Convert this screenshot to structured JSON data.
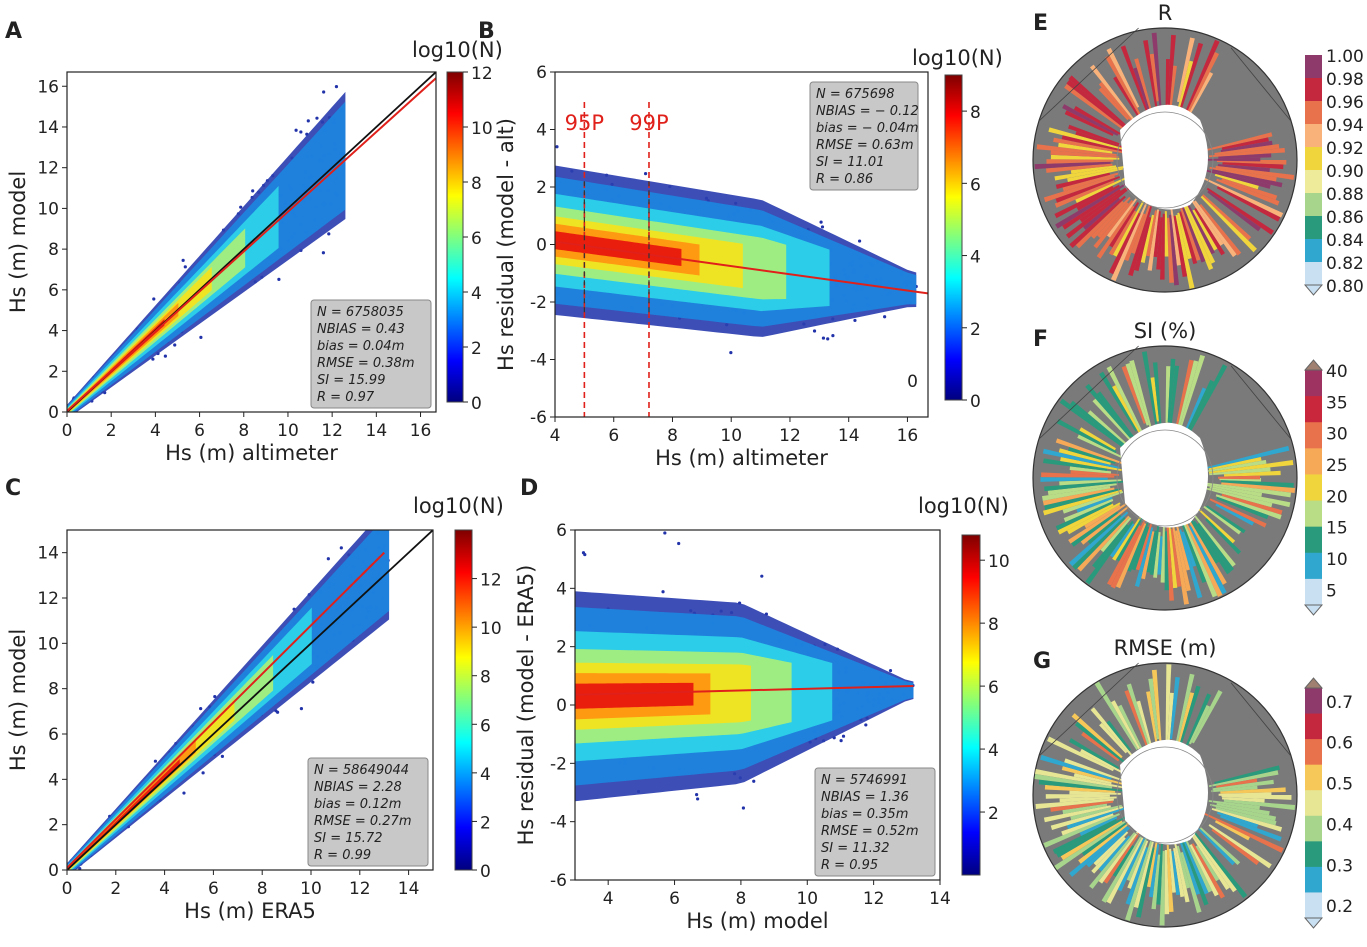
{
  "chart_data": [
    {
      "panel": "A",
      "type": "scatter",
      "xlabel": "Hs (m) altimeter",
      "ylabel": "Hs (m) model",
      "xlim": [
        0,
        16.7
      ],
      "ylim": [
        0,
        16.7
      ],
      "xticks": [
        0,
        2,
        4,
        6,
        8,
        10,
        12,
        14,
        16
      ],
      "yticks": [
        0,
        2,
        4,
        6,
        8,
        10,
        12,
        14,
        16
      ],
      "colorbar": {
        "label": "log10(N)",
        "range": [
          0,
          12
        ],
        "ticks": [
          0,
          2,
          4,
          6,
          8,
          10,
          12
        ]
      },
      "fit_line": {
        "x": [
          0,
          16.7
        ],
        "y": [
          0.05,
          16.4
        ]
      },
      "identity_line": true,
      "stats": [
        "N = 6758035",
        "NBIAS = 0.43",
        "bias = 0.04m",
        "RMSE = 0.38m",
        "SI = 15.99",
        "R = 0.97"
      ]
    },
    {
      "panel": "B",
      "type": "scatter",
      "xlabel": "Hs (m) altimeter",
      "ylabel": "Hs residual (model - alt)",
      "xlim": [
        4,
        16.7
      ],
      "ylim": [
        -6,
        6
      ],
      "xticks": [
        4,
        6,
        8,
        10,
        12,
        14,
        16
      ],
      "yticks": [
        -6,
        -4,
        -2,
        0,
        2,
        4,
        6
      ],
      "colorbar": {
        "label": "log10(N)",
        "range": [
          0,
          9
        ],
        "ticks": [
          0,
          2,
          4,
          6,
          8
        ]
      },
      "fit_line": {
        "x": [
          4,
          16.7
        ],
        "y": [
          0.1,
          -1.7
        ]
      },
      "percentile_lines": [
        {
          "label": "95P",
          "x": 5.0
        },
        {
          "label": "99P",
          "x": 7.2
        }
      ],
      "corner_note": "0",
      "stats": [
        "N = 675698",
        "NBIAS = − 0.12",
        "bias = − 0.04m",
        "RMSE = 0.63m",
        "SI = 11.01",
        "R = 0.86"
      ]
    },
    {
      "panel": "C",
      "type": "scatter",
      "xlabel": "Hs (m) ERA5",
      "ylabel": "Hs (m) model",
      "xlim": [
        0,
        15
      ],
      "ylim": [
        0,
        15
      ],
      "xticks": [
        0,
        2,
        4,
        6,
        8,
        10,
        12,
        14
      ],
      "yticks": [
        0,
        2,
        4,
        6,
        8,
        10,
        12,
        14
      ],
      "colorbar": {
        "label": "log10(N)",
        "range": [
          0,
          14
        ],
        "ticks": [
          0,
          2,
          4,
          6,
          8,
          10,
          12
        ]
      },
      "fit_line": {
        "x": [
          0,
          13
        ],
        "y": [
          0.1,
          14.0
        ]
      },
      "identity_line": true,
      "stats": [
        "N = 58649044",
        "NBIAS = 2.28",
        "bias = 0.12m",
        "RMSE = 0.27m",
        "SI = 15.72",
        "R = 0.99"
      ]
    },
    {
      "panel": "D",
      "type": "scatter",
      "xlabel": "Hs (m) model",
      "ylabel": "Hs residual (model - ERA5)",
      "xlim": [
        3,
        14
      ],
      "ylim": [
        -6,
        6
      ],
      "xticks": [
        4,
        6,
        8,
        10,
        12,
        14
      ],
      "yticks": [
        -6,
        -4,
        -2,
        0,
        2,
        4,
        6
      ],
      "colorbar": {
        "label": "log10(N)",
        "range": [
          0,
          10.8
        ],
        "ticks": [
          2,
          4,
          6,
          8,
          10
        ]
      },
      "fit_line": {
        "x": [
          3,
          13.2
        ],
        "y": [
          0.35,
          0.65
        ]
      },
      "stats": [
        "N = 5746991",
        "NBIAS = 1.36",
        "bias = 0.35m",
        "RMSE = 0.52m",
        "SI = 11.32",
        "R = 0.95"
      ]
    },
    {
      "panel": "E",
      "type": "heatmap",
      "title": "R",
      "projection": "north-polar",
      "colorbar": {
        "range": [
          0.8,
          1.0
        ],
        "ticks": [
          "1.00",
          "0.98",
          "0.96",
          "0.94",
          "0.92",
          "0.90",
          "0.88",
          "0.86",
          "0.84",
          "0.82",
          "0.80"
        ],
        "colors": [
          "#8e3b6b",
          "#c4283f",
          "#e8724c",
          "#f9b27a",
          "#f0d53c",
          "#eeeb9a",
          "#a8d58c",
          "#2a9a7c",
          "#2fa7cf",
          "#c8e0f2"
        ]
      }
    },
    {
      "panel": "F",
      "type": "heatmap",
      "title": "SI (%)",
      "projection": "north-polar",
      "colorbar": {
        "range": [
          5,
          40
        ],
        "ticks": [
          "40",
          "35",
          "30",
          "25",
          "20",
          "15",
          "10",
          "5"
        ],
        "colors": [
          "#9e3260",
          "#c9283c",
          "#e8724c",
          "#f6a957",
          "#f0d53c",
          "#b9dc86",
          "#2a9a7c",
          "#2fa7cf",
          "#c8e0f2"
        ]
      }
    },
    {
      "panel": "G",
      "type": "heatmap",
      "title": "RMSE (m)",
      "projection": "north-polar",
      "colorbar": {
        "range": [
          0.2,
          0.7
        ],
        "ticks": [
          "0.7",
          "0.6",
          "0.5",
          "0.4",
          "0.3",
          "0.2"
        ],
        "colors": [
          "#8e3b6b",
          "#c4283f",
          "#e8724c",
          "#f6c85a",
          "#e7e695",
          "#a8d58c",
          "#2a9a7c",
          "#2fa7cf",
          "#c8e0f2"
        ]
      }
    }
  ]
}
